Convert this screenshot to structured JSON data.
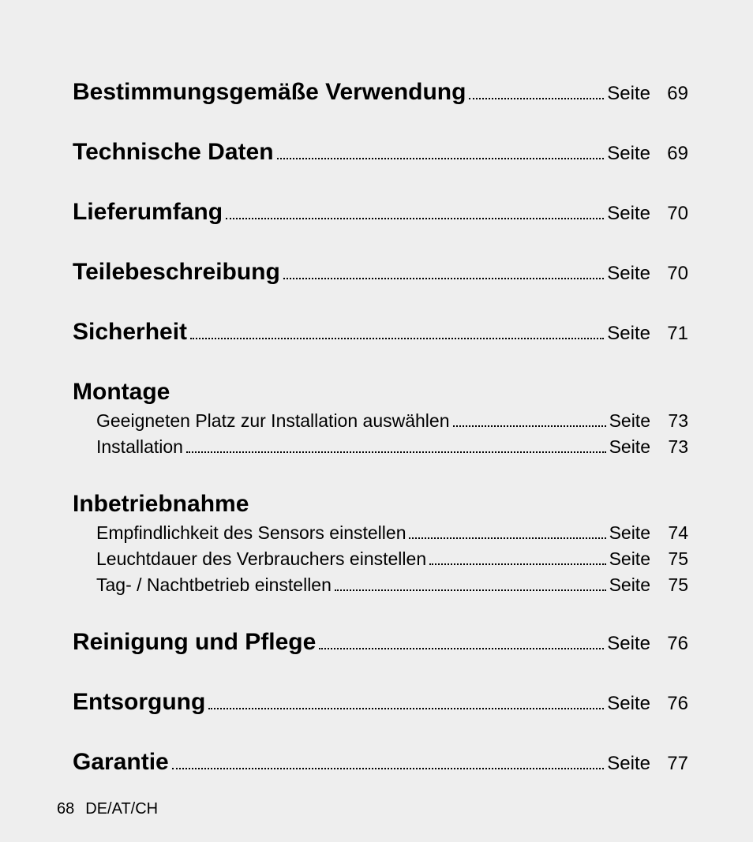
{
  "page_label": "Seite",
  "footer": {
    "page_number": "68",
    "locale": "DE/AT/CH"
  },
  "colors": {
    "background": "#eeeeee",
    "text": "#000000"
  },
  "typography": {
    "main_title_fontsize_pt": 30,
    "sub_title_fontsize_pt": 23,
    "main_title_weight": 800,
    "sub_title_weight": 400,
    "font_family": "Futura / Century Gothic style geometric sans"
  },
  "sections": [
    {
      "title": "Bestimmungsgemäße Verwendung",
      "page": "69",
      "subs": []
    },
    {
      "title": "Technische Daten",
      "page": "69",
      "subs": []
    },
    {
      "title": "Lieferumfang",
      "page": "70",
      "subs": []
    },
    {
      "title": "Teilebeschreibung",
      "page": "70",
      "subs": []
    },
    {
      "title": "Sicherheit",
      "page": "71",
      "subs": []
    },
    {
      "title": "Montage",
      "page": null,
      "subs": [
        {
          "title": "Geeigneten Platz zur Installation auswählen",
          "page": "73"
        },
        {
          "title": "Installation",
          "page": "73"
        }
      ]
    },
    {
      "title": "Inbetriebnahme",
      "page": null,
      "subs": [
        {
          "title": "Empfindlichkeit des Sensors einstellen",
          "page": "74"
        },
        {
          "title": "Leuchtdauer des Verbrauchers einstellen",
          "page": "75"
        },
        {
          "title": "Tag- / Nachtbetrieb einstellen",
          "page": "75"
        }
      ]
    },
    {
      "title": "Reinigung und Pflege",
      "page": "76",
      "subs": []
    },
    {
      "title": "Entsorgung",
      "page": "76",
      "subs": []
    },
    {
      "title": "Garantie",
      "page": "77",
      "subs": []
    }
  ]
}
